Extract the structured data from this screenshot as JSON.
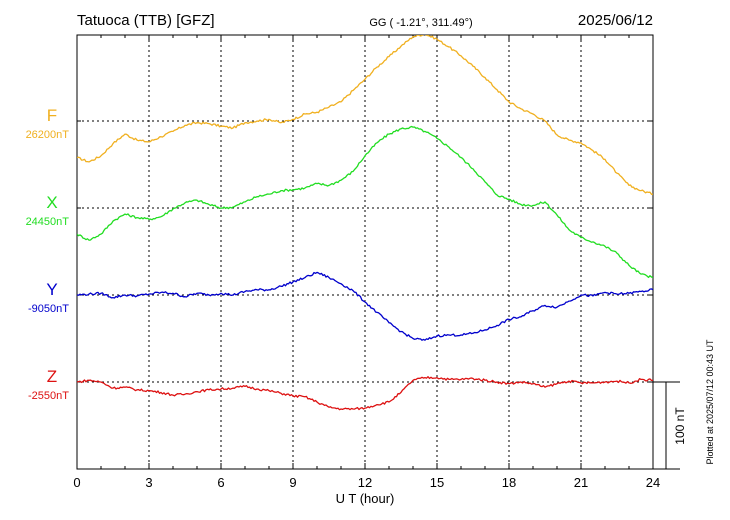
{
  "header": {
    "station": "Tatuoca (TTB)  [GFZ]",
    "coords": "GG ( -1.21°, 311.49°)",
    "date": "2025/06/12"
  },
  "side_note": "Plotted at 2025/07/12 00:43 UT",
  "scale_bar_label": "100 nT",
  "chart_data": {
    "type": "line",
    "xlabel": "U T (hour)",
    "xlim": [
      0,
      24
    ],
    "xticks": [
      "0",
      "3",
      "6",
      "9",
      "12",
      "15",
      "18",
      "21",
      "24"
    ],
    "grid": true,
    "scale_bar_nT": 100,
    "series": [
      {
        "name": "F",
        "baseline_label": "26200nT",
        "color": "#f0b020",
        "baseline_nT": 26200,
        "x": [
          0,
          0.5,
          1,
          1.5,
          2,
          2.5,
          3,
          3.5,
          4,
          4.5,
          5,
          5.5,
          6,
          6.5,
          7,
          7.5,
          8,
          8.5,
          9,
          9.5,
          10,
          10.5,
          11,
          11.5,
          12,
          12.5,
          13,
          13.5,
          14,
          14.5,
          15,
          15.5,
          16,
          16.5,
          17,
          17.5,
          18,
          18.5,
          19,
          19.5,
          20,
          20.5,
          21,
          21.5,
          22,
          22.5,
          23,
          23.5,
          24
        ],
        "y": [
          26158,
          26153,
          26160,
          26174,
          26185,
          26178,
          26176,
          26182,
          26188,
          26195,
          26198,
          26197,
          26194,
          26192,
          26198,
          26200,
          26202,
          26198,
          26202,
          26208,
          26210,
          26216,
          26222,
          26235,
          26248,
          26262,
          26274,
          26286,
          26297,
          26300,
          26294,
          26285,
          26275,
          26263,
          26250,
          26236,
          26222,
          26214,
          26208,
          26200,
          26184,
          26178,
          26175,
          26166,
          26156,
          26140,
          26126,
          26120,
          26116
        ]
      },
      {
        "name": "X",
        "baseline_label": "24450nT",
        "color": "#22dd22",
        "baseline_nT": 24450,
        "x": [
          0,
          0.5,
          1,
          1.5,
          2,
          2.5,
          3,
          3.5,
          4,
          4.5,
          5,
          5.5,
          6,
          6.5,
          7,
          7.5,
          8,
          8.5,
          9,
          9.5,
          10,
          10.5,
          11,
          11.5,
          12,
          12.5,
          13,
          13.5,
          14,
          14.5,
          15,
          15.5,
          16,
          16.5,
          17,
          17.5,
          18,
          18.5,
          19,
          19.5,
          20,
          20.5,
          21,
          21.5,
          22,
          22.5,
          23,
          23.5,
          24
        ],
        "y": [
          24420,
          24413,
          24420,
          24435,
          24443,
          24439,
          24437,
          24440,
          24449,
          24456,
          24459,
          24454,
          24450,
          24451,
          24457,
          24463,
          24466,
          24470,
          24471,
          24473,
          24478,
          24476,
          24482,
          24492,
          24510,
          24525,
          24535,
          24541,
          24543,
          24538,
          24530,
          24520,
          24508,
          24495,
          24480,
          24465,
          24460,
          24454,
          24453,
          24457,
          24442,
          24425,
          24416,
          24411,
          24406,
          24398,
          24384,
          24374,
          24370
        ]
      },
      {
        "name": "Y",
        "baseline_label": "-9050nT",
        "color": "#0000cc",
        "baseline_nT": -9050,
        "x": [
          0,
          0.5,
          1,
          1.5,
          2,
          2.5,
          3,
          3.5,
          4,
          4.5,
          5,
          5.5,
          6,
          6.5,
          7,
          7.5,
          8,
          8.5,
          9,
          9.5,
          10,
          10.5,
          11,
          11.5,
          12,
          12.5,
          13,
          13.5,
          14,
          14.5,
          15,
          15.5,
          16,
          16.5,
          17,
          17.5,
          18,
          18.5,
          19,
          19.5,
          20,
          20.5,
          21,
          21.5,
          22,
          22.5,
          23,
          23.5,
          24
        ],
        "y": [
          -9050,
          -9049,
          -9048,
          -9053,
          -9050,
          -9051,
          -9049,
          -9047,
          -9048,
          -9052,
          -9048,
          -9050,
          -9048,
          -9050,
          -9046,
          -9044,
          -9044,
          -9040,
          -9035,
          -9030,
          -9024,
          -9030,
          -9037,
          -9045,
          -9058,
          -9070,
          -9082,
          -9092,
          -9100,
          -9102,
          -9097,
          -9096,
          -9096,
          -9094,
          -9090,
          -9085,
          -9078,
          -9075,
          -9068,
          -9062,
          -9064,
          -9057,
          -9050,
          -9051,
          -9047,
          -9049,
          -9048,
          -9046,
          -9044
        ]
      },
      {
        "name": "Z",
        "baseline_label": "-2550nT",
        "color": "#dd1111",
        "baseline_nT": -2550,
        "x": [
          0,
          0.5,
          1,
          1.5,
          2,
          2.5,
          3,
          3.5,
          4,
          4.5,
          5,
          5.5,
          6,
          6.5,
          7,
          7.5,
          8,
          8.5,
          9,
          9.5,
          10,
          10.5,
          11,
          11.5,
          12,
          12.5,
          13,
          13.5,
          14,
          14.5,
          15,
          15.5,
          16,
          16.5,
          17,
          17.5,
          18,
          18.5,
          19,
          19.5,
          20,
          20.5,
          21,
          21.5,
          22,
          22.5,
          23,
          23.5,
          24
        ],
        "y": [
          -2550,
          -2548,
          -2550,
          -2557,
          -2556,
          -2559,
          -2560,
          -2562,
          -2565,
          -2564,
          -2561,
          -2559,
          -2558,
          -2557,
          -2555,
          -2558,
          -2560,
          -2563,
          -2566,
          -2567,
          -2573,
          -2579,
          -2581,
          -2581,
          -2580,
          -2576,
          -2573,
          -2562,
          -2548,
          -2545,
          -2545,
          -2547,
          -2547,
          -2546,
          -2548,
          -2550,
          -2552,
          -2550,
          -2552,
          -2556,
          -2552,
          -2549,
          -2551,
          -2551,
          -2550,
          -2549,
          -2551,
          -2547,
          -2548
        ]
      }
    ]
  }
}
